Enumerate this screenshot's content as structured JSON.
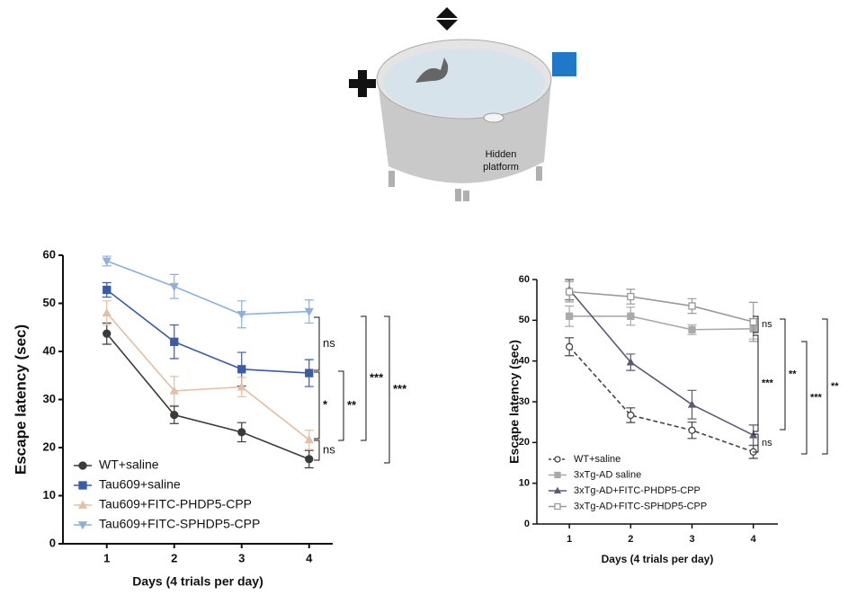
{
  "illustration": {
    "label_lines": [
      "Hidden",
      "platform"
    ]
  },
  "chart_data": [
    {
      "type": "line",
      "x_label": "Days (4 trials per day)",
      "y_label": "Escape latency (sec)",
      "x": [
        1,
        2,
        3,
        4
      ],
      "xlim": [
        0.35,
        4.35
      ],
      "xticks": [
        1,
        2,
        3,
        4
      ],
      "ylim": [
        0,
        60
      ],
      "yticks": [
        0,
        10,
        20,
        30,
        40,
        50,
        60
      ],
      "series": [
        {
          "name": "WT+saline",
          "color": "#3a3a3a",
          "marker": "circle",
          "values": [
            43.7,
            26.8,
            23.2,
            17.6
          ],
          "errors": [
            2.2,
            1.8,
            2,
            1.8
          ]
        },
        {
          "name": "Tau609+saline",
          "color": "#3b5ba5",
          "marker": "square",
          "values": [
            52.8,
            42,
            36.3,
            35.5
          ],
          "errors": [
            1.5,
            3.5,
            3.5,
            2.8
          ]
        },
        {
          "name": "Tau609+FITC-PHDP5-CPP",
          "color": "#e3bfa3",
          "marker": "triangle",
          "values": [
            48,
            31.8,
            32.6,
            21.6
          ],
          "errors": [
            2.5,
            3,
            2,
            2
          ]
        },
        {
          "name": "Tau609+FITC-SPHDP5-CPP",
          "color": "#8fb0d8",
          "marker": "triangle-down",
          "values": [
            58.8,
            53.5,
            47.7,
            48.3
          ],
          "errors": [
            1,
            2.5,
            2.8,
            2.4
          ]
        }
      ],
      "annotations": [
        "ns",
        "*",
        "ns",
        "**",
        "***",
        "***"
      ]
    },
    {
      "type": "line",
      "x_label": "Days (4 trials per day)",
      "y_label": "Escape latency (sec)",
      "x": [
        1,
        2,
        3,
        4
      ],
      "xlim": [
        0.47,
        4.4
      ],
      "xticks": [
        1,
        2,
        3,
        4
      ],
      "ylim": [
        0,
        60
      ],
      "yticks": [
        0,
        10,
        20,
        30,
        40,
        50,
        60
      ],
      "series": [
        {
          "name": "WT+saline",
          "color": "#444444",
          "marker": "circle",
          "open": true,
          "dashed": true,
          "values": [
            43.5,
            26.7,
            23,
            17.7
          ],
          "errors": [
            2.2,
            1.8,
            2,
            1.6
          ]
        },
        {
          "name": "3xTg-AD saline",
          "color": "#aaaaaa",
          "marker": "square",
          "values": [
            51,
            51,
            47.7,
            47.9
          ],
          "errors": [
            2.5,
            2.2,
            1.2,
            2.5
          ]
        },
        {
          "name": "3xTg-AD+FITC-PHDP5-CPP",
          "color": "#5a5a78",
          "marker": "triangle",
          "values": [
            57.5,
            39.7,
            29.3,
            21.8
          ],
          "errors": [
            2.5,
            2,
            3.5,
            2.5
          ]
        },
        {
          "name": "3xTg-AD+FITC-SPHDP5-CPP",
          "color": "#999999",
          "marker": "square",
          "open": true,
          "values": [
            57,
            55.8,
            53.5,
            49.6
          ],
          "errors": [
            2.5,
            1.8,
            1.8,
            4.8
          ]
        }
      ],
      "annotations": [
        "ns",
        "***",
        "ns",
        "**",
        "***",
        "**"
      ]
    }
  ]
}
